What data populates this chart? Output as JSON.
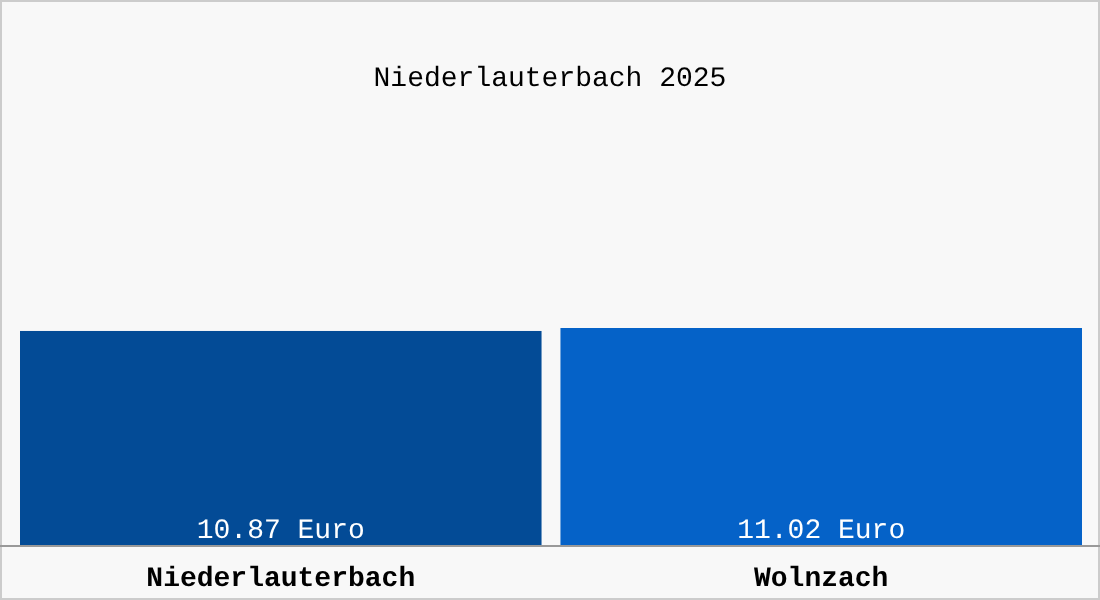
{
  "chart_data": {
    "type": "bar",
    "title": "Niederlauterbach 2025",
    "categories": [
      "Niederlauterbach",
      "Wolnzach"
    ],
    "values": [
      10.87,
      11.02
    ],
    "colors": [
      "#034b96",
      "#0562c8"
    ],
    "value_labels": [
      "10.87 Euro",
      "11.02 Euro"
    ]
  }
}
